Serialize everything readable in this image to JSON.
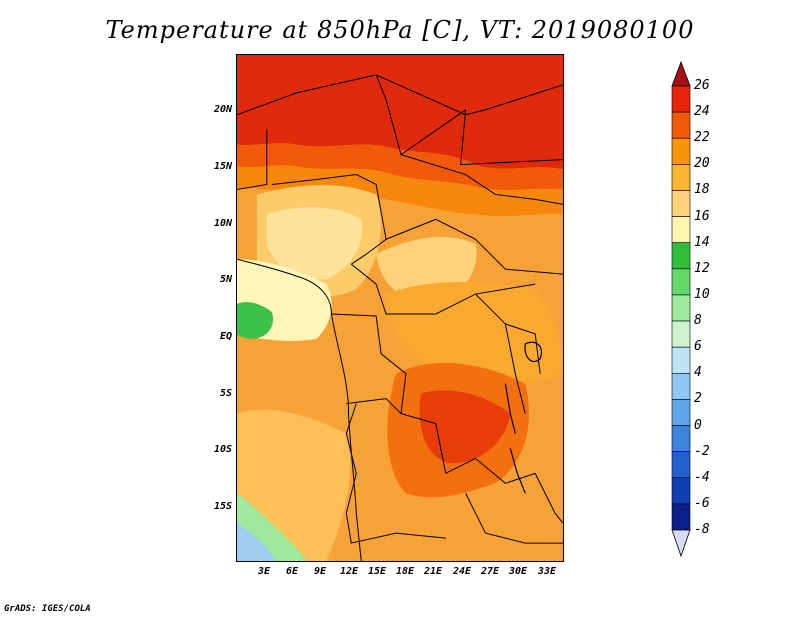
{
  "title": "Temperature at 850hPa [C], VT: 2019080100",
  "credit": "GrADS: IGES/COLA",
  "map": {
    "lat_ticks": [
      "20N",
      "15N",
      "10N",
      "5N",
      "EQ",
      "5S",
      "10S",
      "15S"
    ],
    "lon_ticks": [
      "3E",
      "6E",
      "9E",
      "12E",
      "15E",
      "18E",
      "21E",
      "24E",
      "27E",
      "30E",
      "33E"
    ]
  },
  "colorbar": {
    "labels": [
      "26",
      "24",
      "22",
      "20",
      "18",
      "16",
      "14",
      "12",
      "10",
      "8",
      "6",
      "4",
      "2",
      "0",
      "-2",
      "-4",
      "-6",
      "-8"
    ],
    "colors": [
      "#a50f15",
      "#e6250a",
      "#f05a0a",
      "#f7940a",
      "#fab632",
      "#fdd27a",
      "#fff4b0",
      "#2fbf3a",
      "#62d96a",
      "#9ee99b",
      "#ccf3cc",
      "#bfe4f8",
      "#8fc8f2",
      "#5fa6e8",
      "#3d82db",
      "#2360cc",
      "#1040b0",
      "#0a1f8a",
      "#050e60"
    ],
    "under_color": "#d7dbf2"
  }
}
